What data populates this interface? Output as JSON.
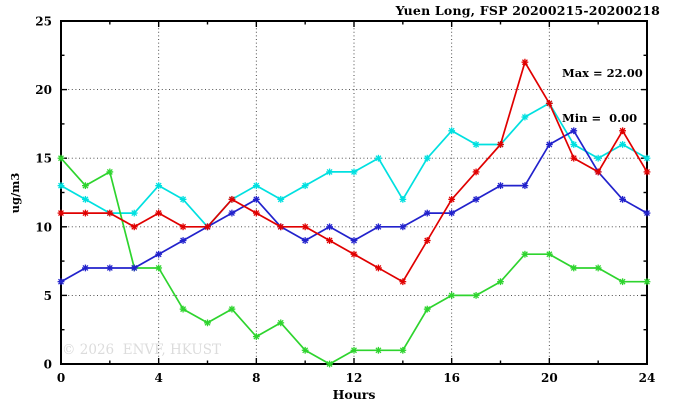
{
  "header": {
    "title": "Yuen Long, FSP 20200215-20200218"
  },
  "annotation": {
    "max_label": "Max = 22.00",
    "min_label": "Min =  0.00"
  },
  "watermark": "© 2026  ENVF, HKUST",
  "axis": {
    "xlabel": "Hours",
    "ylabel": "ug/m3"
  },
  "chart_data": {
    "type": "line",
    "title": "Yuen Long, FSP 20200215-20200218",
    "xlabel": "Hours",
    "ylabel": "ug/m3",
    "xlim": [
      0,
      24
    ],
    "ylim": [
      0,
      25
    ],
    "x_major_ticks": [
      0,
      4,
      8,
      12,
      16,
      20,
      24
    ],
    "x_minor_ticks": [
      2,
      6,
      10,
      14,
      18,
      22
    ],
    "y_major_ticks": [
      0,
      5,
      10,
      15,
      20,
      25
    ],
    "y_minor_ticks": [
      2.5,
      7.5,
      12.5,
      17.5,
      22.5
    ],
    "grid_x": [
      4,
      8,
      12,
      16,
      20
    ],
    "grid_y": [
      5,
      10,
      15,
      20
    ],
    "grid": true,
    "legend_position": "none",
    "max": 22.0,
    "min": 0.0,
    "x": [
      0,
      1,
      2,
      3,
      4,
      5,
      6,
      7,
      8,
      9,
      10,
      11,
      12,
      13,
      14,
      15,
      16,
      17,
      18,
      19,
      20,
      21,
      22,
      23,
      24
    ],
    "series": [
      {
        "name": "cyan-series",
        "color": "#00e0e0",
        "values": [
          13,
          12,
          11,
          11,
          13,
          12,
          10,
          12,
          13,
          12,
          13,
          14,
          14,
          15,
          12,
          15,
          17,
          16,
          16,
          18,
          19,
          16,
          15,
          16,
          15
        ]
      },
      {
        "name": "green-series",
        "color": "#2ed42e",
        "values": [
          15,
          13,
          14,
          7,
          7,
          4,
          3,
          4,
          2,
          3,
          1,
          0,
          1,
          1,
          1,
          4,
          5,
          5,
          6,
          8,
          8,
          7,
          7,
          6,
          6
        ]
      },
      {
        "name": "blue-series",
        "color": "#2222cc",
        "values": [
          6,
          7,
          7,
          7,
          8,
          9,
          10,
          11,
          12,
          10,
          9,
          10,
          9,
          10,
          10,
          11,
          11,
          12,
          13,
          13,
          16,
          17,
          14,
          12,
          11
        ]
      },
      {
        "name": "red-series",
        "color": "#e00000",
        "values": [
          11,
          11,
          11,
          10,
          11,
          10,
          10,
          12,
          11,
          10,
          10,
          9,
          8,
          7,
          6,
          9,
          12,
          14,
          16,
          22,
          19,
          15,
          14,
          17,
          14
        ]
      }
    ]
  }
}
